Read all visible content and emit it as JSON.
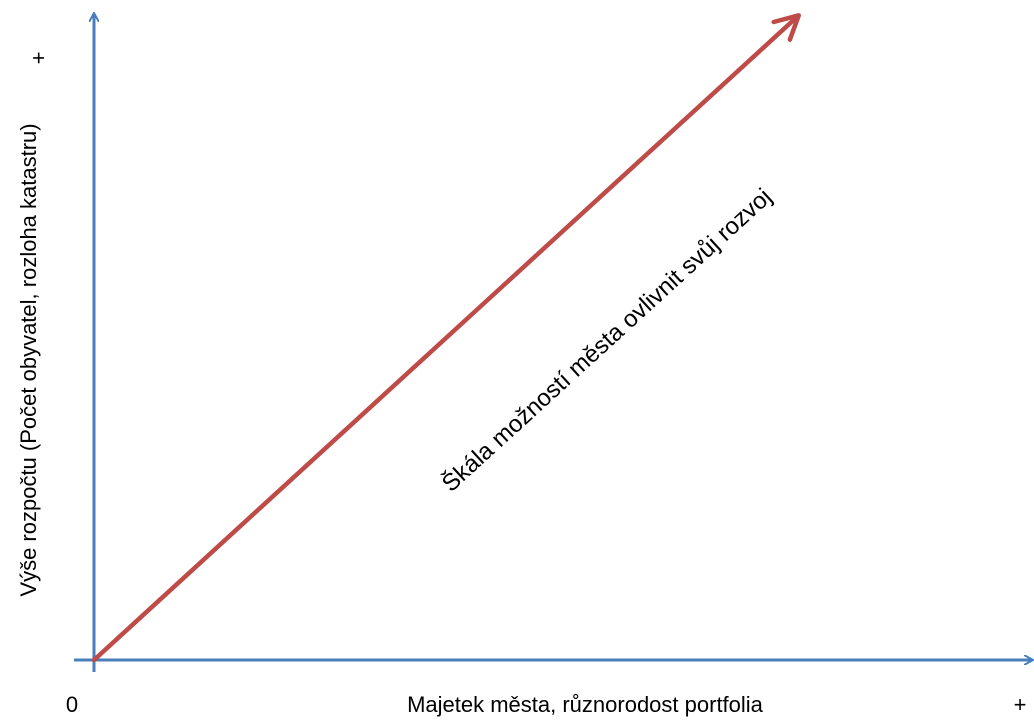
{
  "axes": {
    "y_label": "Výše rozpočtu  (Počet obyvatel, rozloha katastru)",
    "y_max": "+",
    "x_label": "Majetek města, různorodost portfolia",
    "x_max": "+",
    "origin": "0"
  },
  "arrow": {
    "label": "Škála možností města ovlivnit svůj rozvoj"
  }
}
